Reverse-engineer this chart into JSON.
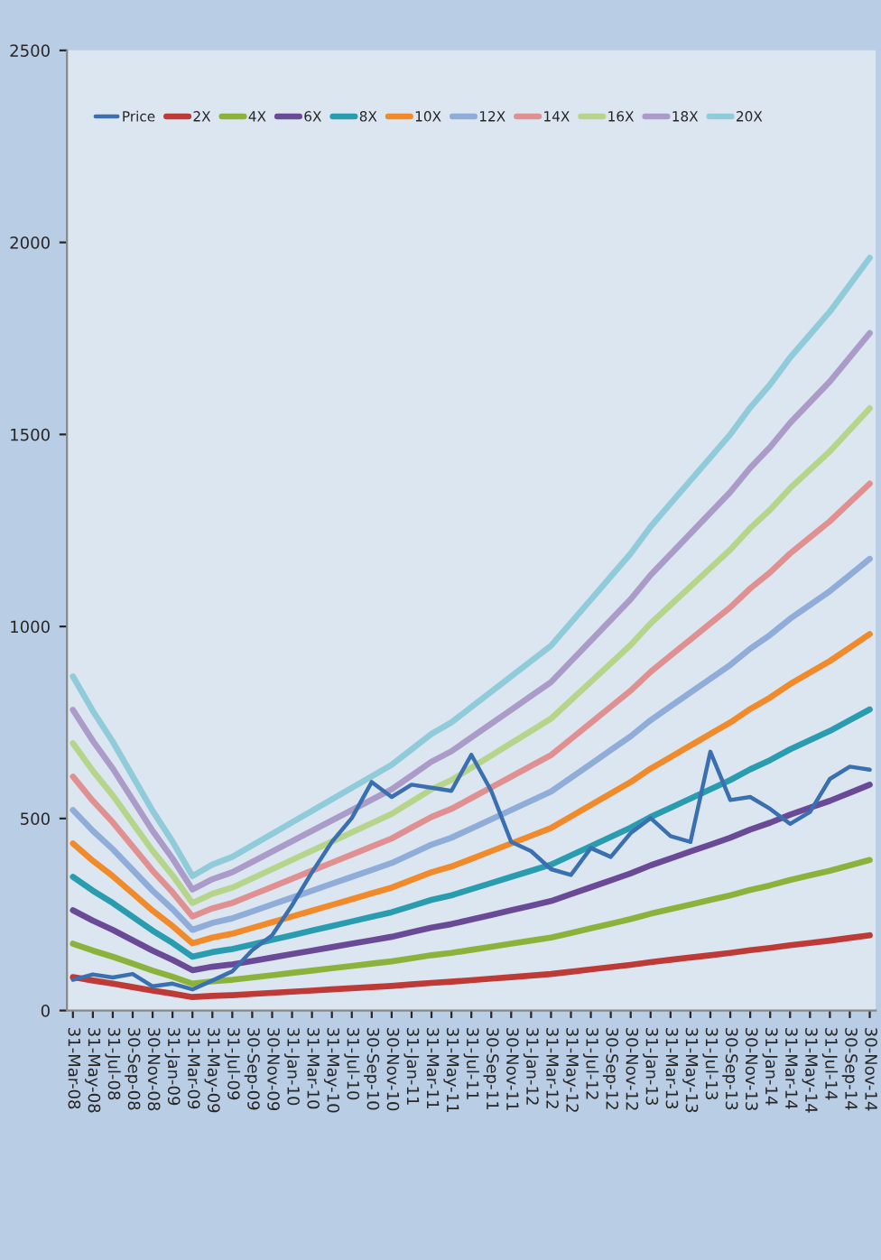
{
  "chart_data": {
    "type": "line",
    "categories": [
      "31-Mar-08",
      "31-May-08",
      "31-Jul-08",
      "30-Sep-08",
      "30-Nov-08",
      "31-Jan-09",
      "31-Mar-09",
      "31-May-09",
      "31-Jul-09",
      "30-Sep-09",
      "30-Nov-09",
      "31-Jan-10",
      "31-Mar-10",
      "31-May-10",
      "31-Jul-10",
      "30-Sep-10",
      "30-Nov-10",
      "31-Jan-11",
      "31-Mar-11",
      "31-May-11",
      "31-Jul-11",
      "30-Sep-11",
      "30-Nov-11",
      "31-Jan-12",
      "31-Mar-12",
      "31-May-12",
      "31-Jul-12",
      "30-Sep-12",
      "30-Nov-12",
      "31-Jan-13",
      "31-Mar-13",
      "31-May-13",
      "31-Jul-13",
      "30-Sep-13",
      "30-Nov-13",
      "31-Jan-14",
      "31-Mar-14",
      "31-May-14",
      "31-Jul-14",
      "30-Sep-14",
      "30-Nov-14"
    ],
    "series": [
      {
        "name": "Price",
        "color": "#3a6fb0",
        "values": [
          80,
          94,
          86,
          95,
          63,
          70,
          55,
          78,
          102,
          157,
          196,
          274,
          360,
          439,
          501,
          595,
          556,
          588,
          580,
          572,
          666,
          572,
          439,
          415,
          368,
          353,
          423,
          400,
          462,
          501,
          454,
          439,
          674,
          548,
          556,
          525,
          486,
          517,
          603,
          635,
          627
        ]
      },
      {
        "name": "2X",
        "color": "#be3a36",
        "values": [
          87,
          78,
          70,
          61,
          52,
          44,
          35,
          38,
          40,
          43,
          46,
          49,
          52,
          55,
          58,
          61,
          64,
          68,
          72,
          75,
          79,
          83,
          87,
          91,
          95,
          101,
          107,
          113,
          119,
          126,
          132,
          138,
          144,
          150,
          157,
          163,
          170,
          176,
          182,
          189,
          196
        ]
      },
      {
        "name": "4X",
        "color": "#8bb33b",
        "values": [
          174,
          156,
          140,
          122,
          104,
          88,
          70,
          76,
          80,
          86,
          92,
          98,
          104,
          110,
          116,
          122,
          128,
          136,
          144,
          150,
          158,
          166,
          174,
          182,
          190,
          202,
          214,
          226,
          238,
          252,
          264,
          276,
          288,
          300,
          314,
          326,
          340,
          352,
          364,
          378,
          392
        ]
      },
      {
        "name": "6X",
        "color": "#6a4a96",
        "values": [
          261,
          234,
          210,
          183,
          156,
          132,
          105,
          114,
          120,
          129,
          138,
          147,
          156,
          165,
          174,
          183,
          192,
          204,
          216,
          225,
          237,
          249,
          261,
          273,
          285,
          303,
          321,
          339,
          357,
          378,
          396,
          414,
          432,
          450,
          471,
          489,
          510,
          528,
          546,
          567,
          588
        ]
      },
      {
        "name": "8X",
        "color": "#2a9cb0",
        "values": [
          348,
          312,
          280,
          244,
          208,
          176,
          140,
          152,
          160,
          172,
          184,
          196,
          208,
          220,
          232,
          244,
          256,
          272,
          288,
          300,
          316,
          332,
          348,
          364,
          380,
          404,
          428,
          452,
          476,
          504,
          528,
          552,
          576,
          600,
          628,
          652,
          680,
          704,
          728,
          756,
          784
        ]
      },
      {
        "name": "10X",
        "color": "#f08a2a",
        "values": [
          435,
          390,
          350,
          305,
          260,
          220,
          175,
          190,
          200,
          215,
          230,
          245,
          260,
          275,
          290,
          305,
          320,
          340,
          360,
          375,
          395,
          415,
          435,
          455,
          475,
          505,
          535,
          565,
          595,
          630,
          660,
          690,
          720,
          750,
          785,
          815,
          850,
          880,
          910,
          945,
          980
        ]
      },
      {
        "name": "12X",
        "color": "#90acd8",
        "values": [
          522,
          468,
          420,
          366,
          312,
          264,
          210,
          228,
          240,
          258,
          276,
          294,
          312,
          330,
          348,
          366,
          384,
          408,
          432,
          450,
          474,
          498,
          522,
          546,
          570,
          606,
          642,
          678,
          714,
          756,
          792,
          828,
          864,
          900,
          942,
          978,
          1020,
          1056,
          1092,
          1134,
          1176
        ]
      },
      {
        "name": "14X",
        "color": "#e09090",
        "values": [
          609,
          546,
          490,
          427,
          364,
          308,
          245,
          266,
          280,
          301,
          322,
          343,
          364,
          385,
          406,
          427,
          448,
          476,
          504,
          525,
          553,
          581,
          609,
          637,
          665,
          707,
          749,
          791,
          833,
          882,
          924,
          966,
          1008,
          1050,
          1099,
          1141,
          1190,
          1232,
          1274,
          1323,
          1372
        ]
      },
      {
        "name": "16X",
        "color": "#b6d58a",
        "values": [
          696,
          624,
          560,
          488,
          416,
          352,
          280,
          304,
          320,
          344,
          368,
          392,
          416,
          440,
          464,
          488,
          512,
          544,
          576,
          600,
          632,
          664,
          696,
          728,
          760,
          808,
          856,
          904,
          952,
          1008,
          1056,
          1104,
          1152,
          1200,
          1256,
          1304,
          1360,
          1408,
          1456,
          1512,
          1568
        ]
      },
      {
        "name": "18X",
        "color": "#ab9bc8",
        "values": [
          783,
          702,
          630,
          549,
          468,
          396,
          315,
          342,
          360,
          387,
          414,
          441,
          468,
          495,
          522,
          549,
          576,
          612,
          648,
          675,
          711,
          747,
          783,
          819,
          855,
          909,
          963,
          1017,
          1071,
          1134,
          1188,
          1242,
          1296,
          1350,
          1413,
          1467,
          1530,
          1584,
          1638,
          1701,
          1764
        ]
      },
      {
        "name": "20X",
        "color": "#8fcbd8",
        "values": [
          870,
          780,
          700,
          610,
          520,
          440,
          350,
          380,
          400,
          430,
          460,
          490,
          520,
          550,
          580,
          610,
          640,
          680,
          720,
          750,
          790,
          830,
          870,
          910,
          950,
          1010,
          1070,
          1130,
          1190,
          1260,
          1320,
          1380,
          1440,
          1500,
          1570,
          1630,
          1700,
          1760,
          1820,
          1890,
          1960
        ]
      }
    ],
    "ylim": [
      0,
      2500
    ],
    "yticks": [
      0,
      500,
      1000,
      1500,
      2000,
      2500
    ],
    "grid": false,
    "legend": "top left",
    "marker": "none",
    "line_style": "solid"
  }
}
